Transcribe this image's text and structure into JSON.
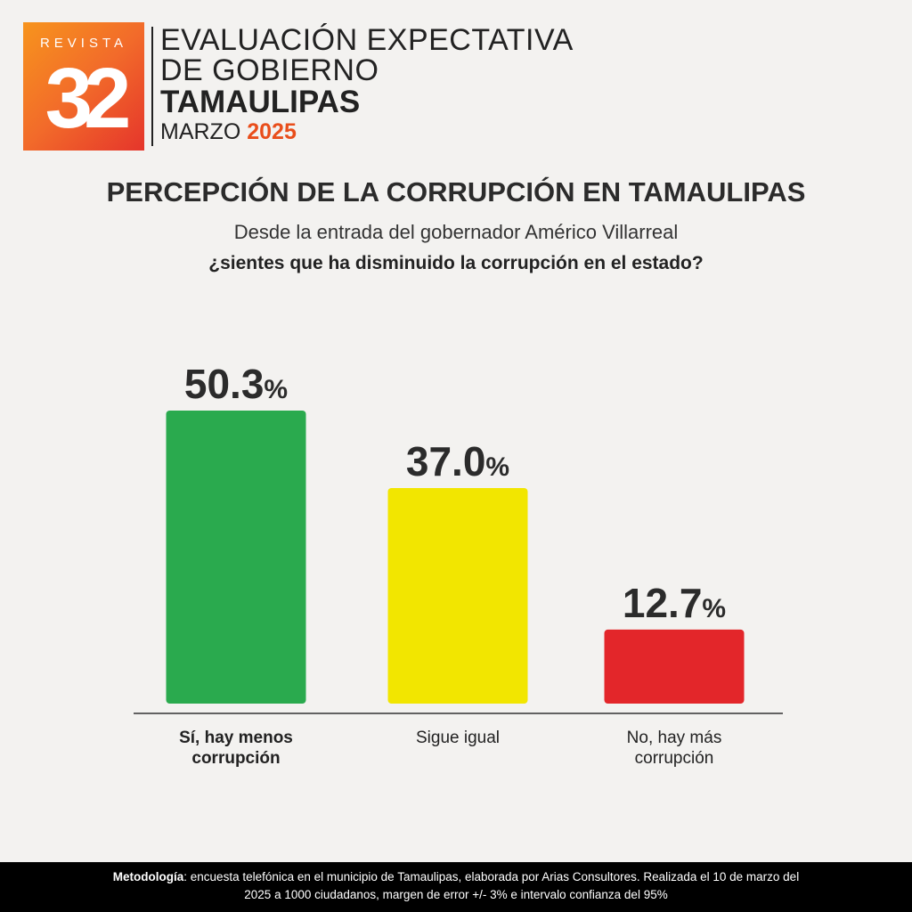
{
  "header": {
    "logo_top": "REVISTA",
    "logo_number": "32",
    "line1": "EVALUACIÓN EXPECTATIVA",
    "line2": "DE GOBIERNO",
    "line3": "TAMAULIPAS",
    "line4_month": "MARZO",
    "line4_year": "2025",
    "accent_color": "#e94e1b"
  },
  "chart_data": {
    "type": "bar",
    "title": "PERCEPCIÓN DE LA CORRUPCIÓN EN TAMAULIPAS",
    "subtitle": "Desde la entrada del gobernador Américo Villarreal",
    "question": "¿sientes que ha disminuido la corrupción en el estado?",
    "categories": [
      [
        "Sí, hay menos",
        "corrupción"
      ],
      [
        "Sigue igual"
      ],
      [
        "No, hay más",
        "corrupción"
      ]
    ],
    "values": [
      50.3,
      37.0,
      12.7
    ],
    "value_labels": [
      "50.3",
      "37.0",
      "12.7"
    ],
    "unit": "%",
    "colors": [
      "#2aaa4e",
      "#f2e600",
      "#e3262a"
    ],
    "bold_category_index": 0,
    "ylim": [
      0,
      50.3
    ],
    "grid": false,
    "legend": "none"
  },
  "footer": {
    "label": "Metodología",
    "text_line1": ": encuesta telefónica en el municipio de Tamaulipas, elaborada por Arias Consultores. Realizada el 10 de marzo del",
    "text_line2": "2025 a 1000 ciudadanos, margen de error +/- 3% e intervalo confianza del 95%"
  }
}
